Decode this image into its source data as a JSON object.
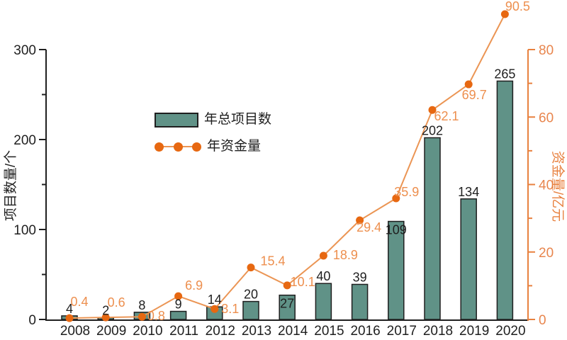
{
  "chart_data": {
    "type": "bar",
    "combo": "bar+line-dual-axis",
    "background": "#ffffff",
    "grid": false,
    "categories": [
      "2008",
      "2009",
      "2010",
      "2011",
      "2012",
      "2013",
      "2014",
      "2015",
      "2016",
      "2017",
      "2018",
      "2019",
      "2020"
    ],
    "series": [
      {
        "name": "年总项目数",
        "type": "bar",
        "axis": "left",
        "values": [
          4,
          2,
          8,
          9,
          14,
          20,
          27,
          40,
          39,
          109,
          202,
          134,
          265
        ],
        "color": "#609287",
        "border_color": "#1f1f1f",
        "value_label_color": "#1f1f1f",
        "value_label_positions": [
          "above",
          "above",
          "above",
          "above",
          "above",
          "above",
          "inside",
          "above",
          "above",
          "inside",
          "above",
          "above",
          "above"
        ]
      },
      {
        "name": "年资金量",
        "type": "line",
        "axis": "right",
        "values": [
          0.4,
          0.6,
          0.8,
          6.9,
          3.1,
          15.4,
          10.1,
          18.9,
          29.4,
          35.9,
          62.1,
          69.7,
          90.5
        ],
        "line_color": "#eb9554",
        "marker_color": "#e76811",
        "label_color": "#ed8f4e",
        "label_offsets": [
          [
            14,
            -23
          ],
          [
            15,
            -21
          ],
          [
            20,
            -1
          ],
          [
            22,
            -15
          ],
          [
            22,
            0
          ],
          [
            31,
            -9
          ],
          [
            22,
            -5
          ],
          [
            31,
            -1
          ],
          [
            13,
            10
          ],
          [
            15,
            -9
          ],
          [
            20,
            9
          ],
          [
            8,
            15
          ],
          [
            18,
            -11
          ]
        ]
      }
    ],
    "left_axis": {
      "label": "项目数量/个",
      "min": 0,
      "max": 300,
      "major_ticks": [
        0,
        100,
        200,
        300
      ],
      "minor_ticks": [
        50,
        150,
        250
      ],
      "color": "#1f1f1f"
    },
    "right_axis": {
      "label": "资金量/亿元",
      "min": 0,
      "max": 80,
      "major_ticks": [
        0,
        20,
        40,
        60,
        80
      ],
      "minor_ticks": [
        10,
        30,
        50,
        70
      ],
      "color": "#e8813f",
      "tick_label_color": "#e8854d"
    },
    "x_axis": {
      "tick_labels": [
        "2008",
        "2009",
        "2010",
        "2011",
        "2012",
        "2013",
        "2014",
        "2015",
        "2016",
        "2017",
        "2018",
        "2019",
        "2020"
      ],
      "color": "#1f1f1f"
    },
    "legend": {
      "position": "upper-center-left",
      "items": [
        {
          "label": "年总项目数",
          "swatch": "bar"
        },
        {
          "label": "年资金量",
          "swatch": "line-with-markers"
        }
      ]
    }
  }
}
